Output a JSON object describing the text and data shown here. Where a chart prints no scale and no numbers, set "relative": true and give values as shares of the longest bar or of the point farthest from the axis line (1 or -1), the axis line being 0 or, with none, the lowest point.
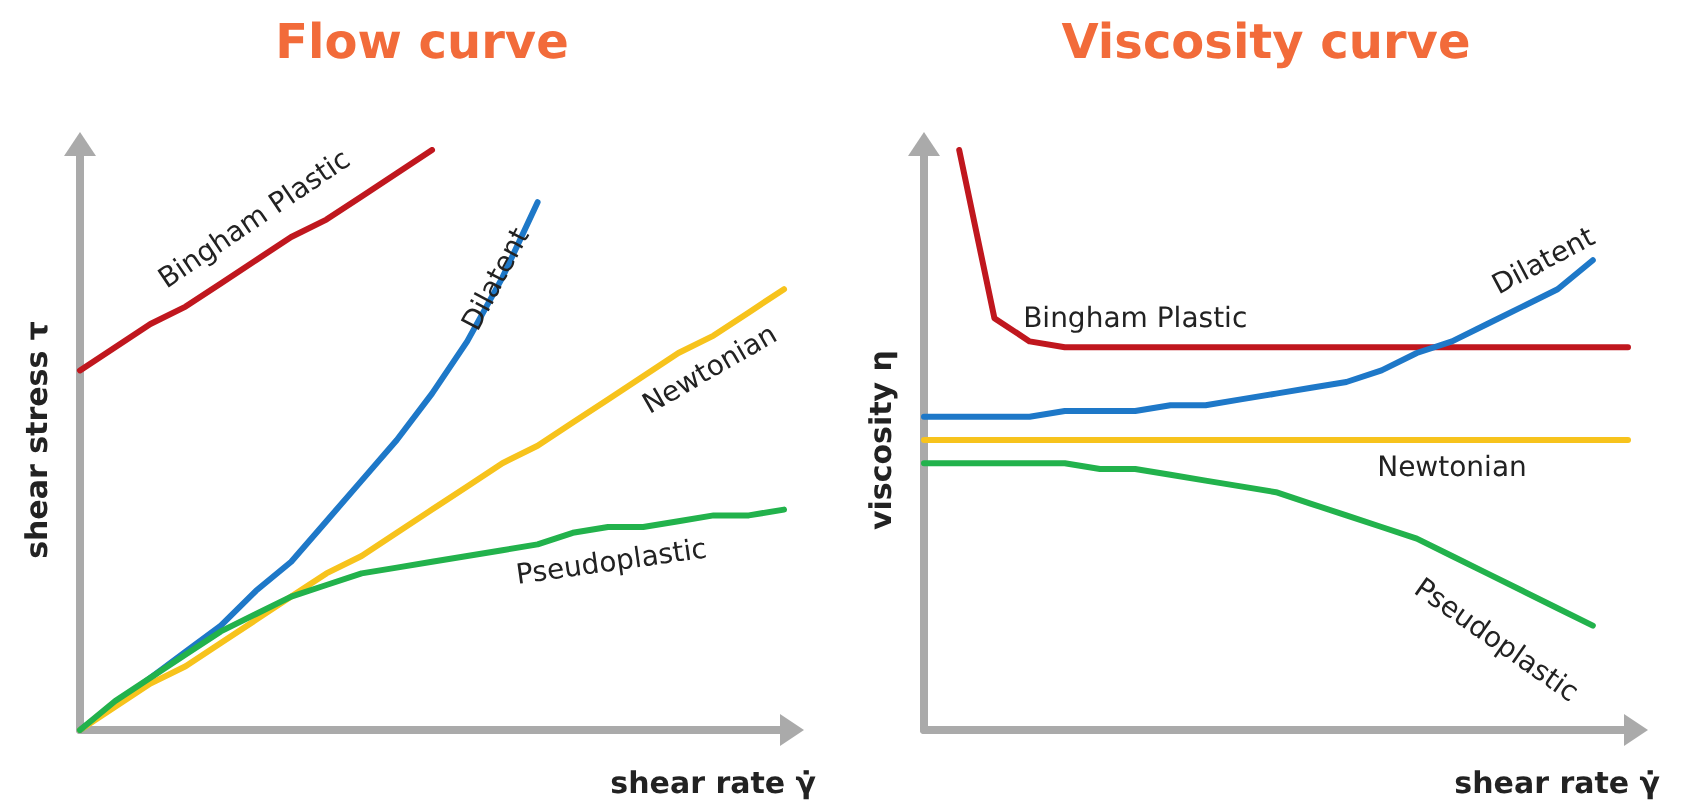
{
  "chart_data": [
    {
      "type": "line",
      "title": "Flow curve",
      "xlabel": "shear rate γ̇",
      "ylabel": "shear stress τ",
      "relative": true,
      "marker": "none",
      "categories": [
        null,
        null,
        null,
        null,
        null,
        null,
        null,
        null,
        null,
        null,
        null,
        null,
        null,
        null,
        null,
        null,
        null,
        null,
        null,
        null,
        null
      ],
      "series": [
        {
          "name": "Bingham Plastic",
          "color": "#c0171e",
          "values": [
            0.62,
            0.66,
            0.7,
            0.73,
            0.77,
            0.81,
            0.85,
            0.88,
            0.92,
            0.96,
            1.0,
            null,
            null,
            null,
            null,
            null,
            null,
            null,
            null,
            null,
            null
          ]
        },
        {
          "name": "Dilatent",
          "color": "#1e78c8",
          "values": [
            0,
            0.045,
            0.09,
            0.135,
            0.18,
            0.24,
            0.29,
            0.36,
            0.43,
            0.5,
            0.58,
            0.67,
            0.78,
            0.91,
            null,
            null,
            null,
            null,
            null,
            null,
            null
          ]
        },
        {
          "name": "Newtonian",
          "color": "#f7c31c",
          "values": [
            0,
            0.04,
            0.08,
            0.11,
            0.15,
            0.19,
            0.23,
            0.27,
            0.3,
            0.34,
            0.38,
            0.42,
            0.46,
            0.49,
            0.53,
            0.57,
            0.61,
            0.65,
            0.68,
            0.72,
            0.76
          ]
        },
        {
          "name": "Pseudoplastic",
          "color": "#22b24c",
          "values": [
            0,
            0.05,
            0.09,
            0.13,
            0.17,
            0.2,
            0.23,
            0.25,
            0.27,
            0.28,
            0.29,
            0.3,
            0.31,
            0.32,
            0.34,
            0.35,
            0.35,
            0.36,
            0.37,
            0.37,
            0.38
          ]
        }
      ]
    },
    {
      "type": "line",
      "title": "Viscosity curve",
      "xlabel": "shear rate γ̇",
      "ylabel": "viscosity η",
      "relative": true,
      "marker": "none",
      "categories": [
        null,
        null,
        null,
        null,
        null,
        null,
        null,
        null,
        null,
        null,
        null,
        null,
        null,
        null,
        null,
        null,
        null,
        null,
        null,
        null,
        null
      ],
      "series": [
        {
          "name": "Bingham Plastic",
          "color": "#c0171e",
          "values": [
            null,
            1.0,
            0.71,
            0.67,
            0.66,
            0.66,
            0.66,
            0.66,
            0.66,
            0.66,
            0.66,
            0.66,
            0.66,
            0.66,
            0.66,
            0.66,
            0.66,
            0.66,
            0.66,
            0.66,
            0.66
          ]
        },
        {
          "name": "Dilatent",
          "color": "#1e78c8",
          "values": [
            0.54,
            0.54,
            0.54,
            0.54,
            0.55,
            0.55,
            0.55,
            0.56,
            0.56,
            0.57,
            0.58,
            0.59,
            0.6,
            0.62,
            0.65,
            0.67,
            0.7,
            0.73,
            0.76,
            0.81,
            null
          ]
        },
        {
          "name": "Newtonian",
          "color": "#f7c31c",
          "values": [
            0.5,
            0.5,
            0.5,
            0.5,
            0.5,
            0.5,
            0.5,
            0.5,
            0.5,
            0.5,
            0.5,
            0.5,
            0.5,
            0.5,
            0.5,
            0.5,
            0.5,
            0.5,
            0.5,
            0.5,
            0.5
          ]
        },
        {
          "name": "Pseudoplastic",
          "color": "#22b24c",
          "values": [
            0.46,
            0.46,
            0.46,
            0.46,
            0.46,
            0.45,
            0.45,
            0.44,
            0.43,
            0.42,
            0.41,
            0.39,
            0.37,
            0.35,
            0.33,
            0.3,
            0.27,
            0.24,
            0.21,
            0.18,
            null
          ]
        }
      ]
    }
  ]
}
